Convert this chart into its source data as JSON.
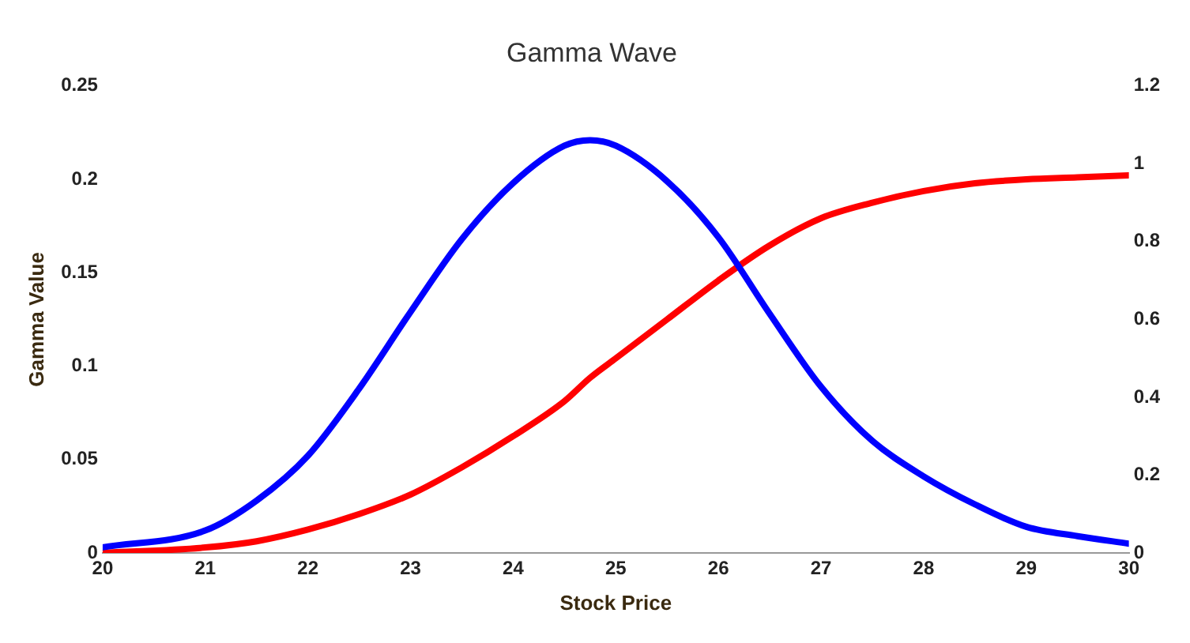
{
  "chart_data": {
    "type": "line",
    "title": "Gamma Wave",
    "xlabel": "Stock Price",
    "ylabel": "Gamma Value",
    "x": [
      20,
      21,
      21.5,
      22,
      22.5,
      23,
      23.5,
      24,
      24.5,
      24.75,
      25,
      25.5,
      26,
      26.5,
      27,
      27.5,
      28,
      28.5,
      29,
      29.5,
      30
    ],
    "series": [
      {
        "color": "#0000ff",
        "values": [
          0.003,
          0.012,
          0.028,
          0.052,
          0.088,
          0.129,
          0.168,
          0.198,
          0.218,
          0.221,
          0.218,
          0.199,
          0.169,
          0.128,
          0.089,
          0.06,
          0.041,
          0.026,
          0.014,
          0.009,
          0.005
        ]
      },
      {
        "color": "#ff0000",
        "axis": "y2",
        "values": [
          0,
          0.014,
          0.03,
          0.06,
          0.1,
          0.15,
          0.22,
          0.3,
          0.39,
          0.45,
          0.5,
          0.6,
          0.7,
          0.79,
          0.86,
          0.9,
          0.93,
          0.95,
          0.96,
          0.965,
          0.97
        ]
      }
    ],
    "xlim": [
      20,
      30
    ],
    "xticks": [
      20,
      21,
      22,
      23,
      24,
      25,
      26,
      27,
      28,
      29,
      30
    ],
    "ylim": [
      0,
      0.25
    ],
    "yticks": [
      0,
      0.05,
      0.1,
      0.15,
      0.2,
      0.25
    ],
    "y2lim": [
      0,
      1.2
    ],
    "y2ticks": [
      0,
      0.2,
      0.4,
      0.6,
      0.8,
      1,
      1.2
    ],
    "grid": false,
    "legend": false,
    "marker": "none",
    "line_style": "solid"
  }
}
